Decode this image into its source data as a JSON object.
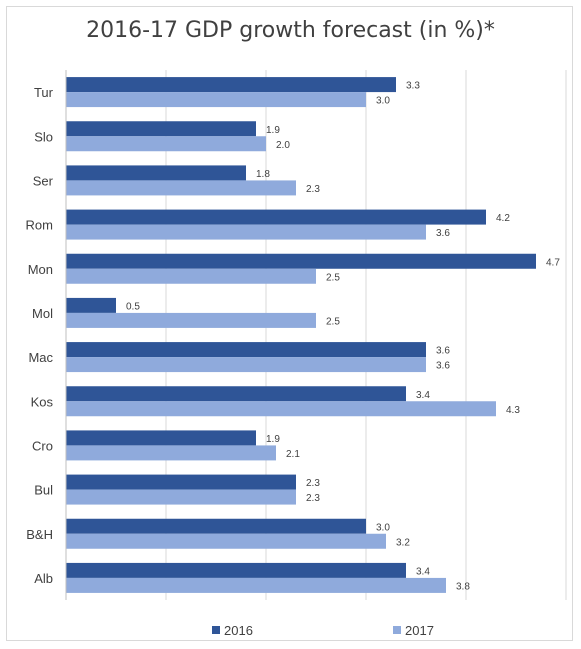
{
  "chart_data": {
    "type": "bar",
    "orientation": "horizontal",
    "title": "2016-17 GDP growth forecast (in %)*",
    "categories": [
      "Tur",
      "Slo",
      "Ser",
      "Rom",
      "Mon",
      "Mol",
      "Mac",
      "Kos",
      "Cro",
      "Bul",
      "B&H",
      "Alb"
    ],
    "series": [
      {
        "name": "2016",
        "color": "#2f5597",
        "values": [
          3.3,
          1.9,
          1.8,
          4.2,
          4.7,
          0.5,
          3.6,
          3.4,
          1.9,
          2.3,
          3.0,
          3.4
        ],
        "labels": [
          "3.3",
          "1.9",
          "1.8",
          "4.2",
          "4.7",
          "0.5",
          "3.6",
          "3.4",
          "1.9",
          "2.3",
          "3.0",
          "3.4"
        ]
      },
      {
        "name": "2017",
        "color": "#8faadc",
        "values": [
          3.0,
          2.0,
          2.3,
          3.6,
          2.5,
          2.5,
          3.6,
          4.3,
          2.1,
          2.3,
          3.2,
          3.8
        ],
        "labels": [
          "3.0",
          "2.0",
          "2.3",
          "3.6",
          "2.5",
          "2.5",
          "3.6",
          "4.3",
          "2.1",
          "2.3",
          "3.2",
          "3.8"
        ]
      }
    ],
    "xlim": [
      0,
      5
    ],
    "grid": true,
    "legend": "bottom"
  }
}
